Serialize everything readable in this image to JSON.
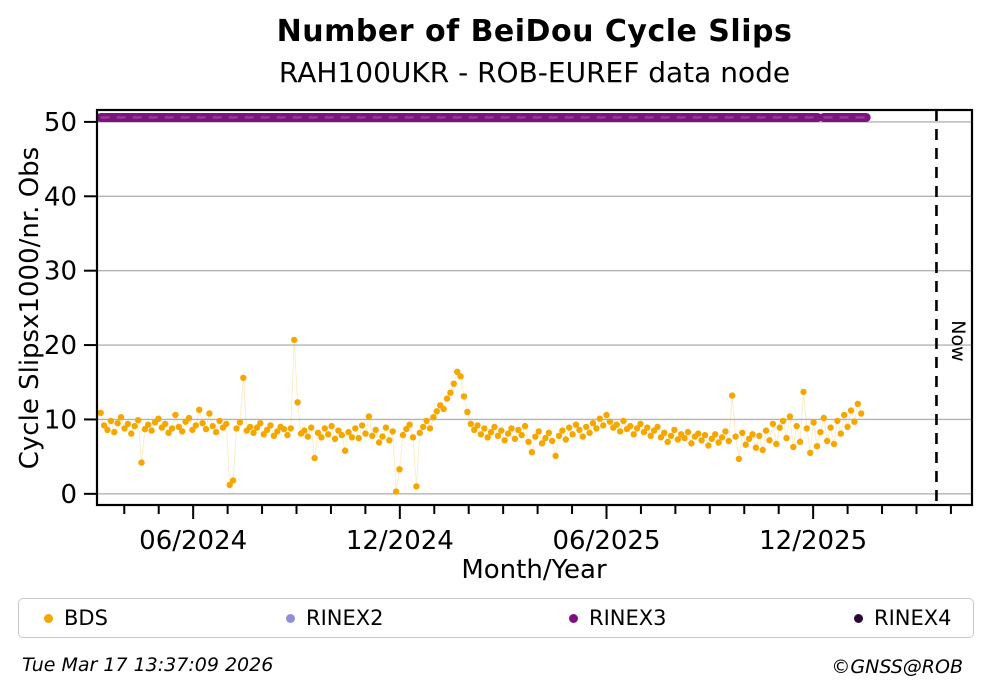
{
  "title": "Number of BeiDou Cycle Slips",
  "subtitle": "RAH100UKR - ROB-EUREF data node",
  "footer": {
    "timestamp": "Tue Mar 17 13:37:09 2026",
    "credit": "©GNSS@ROB"
  },
  "legend": {
    "items": [
      {
        "label": "BDS",
        "color": "#F5A700"
      },
      {
        "label": "RINEX2",
        "color": "#8F8FD8"
      },
      {
        "label": "RINEX3",
        "color": "#7D117D"
      },
      {
        "label": "RINEX4",
        "color": "#2A0934"
      }
    ]
  },
  "chart_data": {
    "type": "scatter",
    "title": "Number of BeiDou Cycle Slips",
    "subtitle": "RAH100UKR - ROB-EUREF data node",
    "xlabel": "Month/Year",
    "ylabel": "Cycle Slipsx1000/nr. Obs",
    "xlim": [
      2024.184,
      2026.301
    ],
    "ylim": [
      -1.5,
      51.6
    ],
    "y_ticks": [
      0,
      10,
      20,
      30,
      40,
      50
    ],
    "x_major_ticks": [
      {
        "value": 2024.4167,
        "label": "06/2024"
      },
      {
        "value": 2024.9167,
        "label": "12/2024"
      },
      {
        "value": 2025.4167,
        "label": "06/2025"
      },
      {
        "value": 2025.9167,
        "label": "12/2025"
      }
    ],
    "x_minor_step_months": 1,
    "grid": "horizontal",
    "grid_color": "#b3b3b3",
    "now_line": {
      "x": 2026.215,
      "label": "Now"
    },
    "series": [
      {
        "name": "BDS",
        "type": "scatter",
        "color": "#F5A700",
        "x_start": 2024.193,
        "x_step_days": 3,
        "values": [
          10.9,
          9.2,
          8.6,
          9.8,
          8.3,
          9.5,
          10.3,
          8.8,
          9.4,
          8.1,
          9.1,
          9.9,
          4.2,
          8.7,
          9.3,
          8.5,
          9.6,
          10.1,
          8.9,
          9.4,
          8.2,
          8.8,
          10.6,
          9.0,
          8.4,
          9.7,
          10.2,
          8.6,
          9.2,
          11.3,
          9.5,
          8.7,
          10.8,
          9.1,
          8.3,
          9.8,
          8.9,
          9.4,
          1.2,
          1.8,
          8.8,
          9.6,
          15.6,
          8.5,
          9.0,
          8.2,
          8.9,
          9.5,
          8.0,
          8.6,
          9.2,
          7.8,
          8.4,
          9.0,
          8.7,
          7.9,
          8.8,
          20.7,
          12.3,
          8.1,
          8.5,
          7.7,
          8.9,
          4.8,
          8.2,
          7.6,
          8.8,
          8.0,
          9.1,
          7.4,
          8.5,
          7.9,
          5.8,
          8.3,
          7.6,
          8.8,
          7.5,
          9.2,
          8.1,
          10.4,
          7.8,
          8.6,
          6.9,
          7.7,
          8.9,
          7.2,
          8.4,
          0.3,
          3.3,
          7.9,
          8.7,
          9.3,
          7.6,
          1.0,
          8.2,
          9.0,
          9.8,
          8.8,
          10.3,
          11.1,
          11.9,
          11.4,
          12.8,
          13.6,
          14.8,
          16.4,
          15.8,
          13.1,
          11.0,
          9.4,
          8.6,
          9.2,
          8.0,
          8.8,
          7.6,
          8.3,
          9.0,
          7.8,
          8.5,
          7.2,
          8.1,
          8.8,
          7.4,
          8.6,
          7.9,
          9.1,
          7.0,
          5.6,
          7.7,
          8.4,
          6.8,
          7.5,
          8.2,
          7.1,
          5.1,
          7.8,
          8.5,
          7.3,
          8.9,
          8.0,
          9.3,
          8.6,
          7.7,
          9.0,
          8.2,
          9.5,
          8.8,
          10.1,
          9.2,
          10.6,
          9.7,
          8.9,
          9.3,
          8.4,
          9.8,
          8.7,
          9.1,
          8.0,
          8.8,
          9.4,
          8.3,
          8.9,
          7.8,
          8.5,
          9.0,
          7.6,
          8.2,
          7.0,
          7.8,
          8.6,
          7.3,
          8.0,
          7.5,
          8.3,
          6.8,
          7.7,
          8.1,
          7.2,
          7.9,
          6.5,
          7.4,
          8.0,
          6.9,
          7.6,
          8.4,
          7.1,
          13.2,
          7.7,
          4.7,
          8.2,
          6.6,
          7.4,
          8.0,
          6.2,
          7.8,
          5.9,
          8.5,
          7.2,
          9.4,
          6.7,
          8.9,
          9.8,
          7.5,
          10.4,
          6.3,
          9.1,
          7.0,
          13.7,
          8.8,
          5.5,
          9.6,
          6.4,
          8.3,
          10.2,
          7.1,
          8.9,
          6.7,
          9.8,
          8.1,
          10.6,
          9.0,
          11.2,
          9.7,
          12.1,
          10.8
        ]
      },
      {
        "name": "RINEX2",
        "type": "scatter",
        "color": "#8F8FD8",
        "values": []
      },
      {
        "name": "RINEX3",
        "type": "line",
        "color": "#7D117D",
        "y": 50.6,
        "segments": [
          [
            2024.193,
            2025.928
          ],
          [
            2025.942,
            2026.045
          ]
        ]
      },
      {
        "name": "RINEX4",
        "type": "scatter",
        "color": "#2A0934",
        "values": []
      }
    ]
  }
}
